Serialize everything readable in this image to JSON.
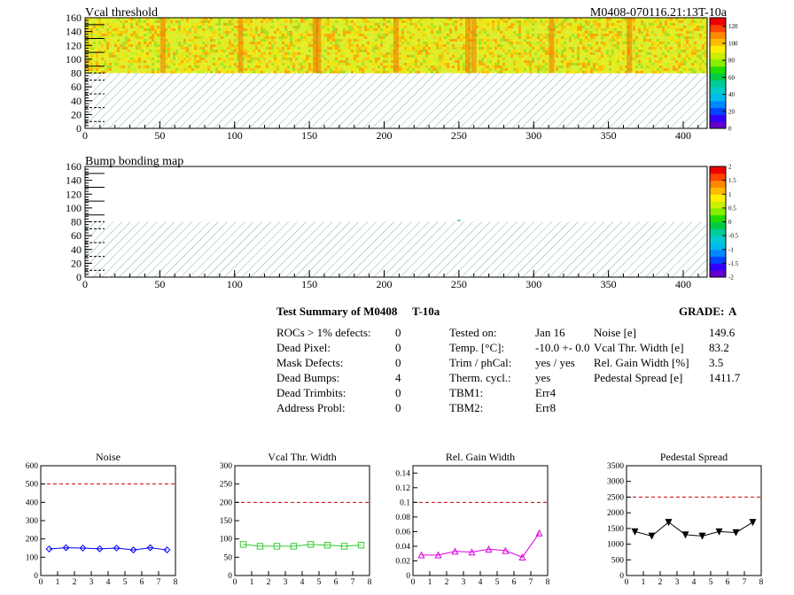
{
  "header": {
    "left_title": "Vcal threshold",
    "right_title": "M0408-070116.21:13T-10a"
  },
  "heatmap1": {
    "title": "Vcal threshold",
    "color_scale_ticks": [
      "0",
      "20",
      "40",
      "60",
      "80",
      "100",
      "120"
    ]
  },
  "heatmap2": {
    "title": "Bump bonding map",
    "color_scale_ticks": [
      "-2",
      "-1.5",
      "-1",
      "-0.5",
      "0",
      "0.5",
      "1",
      "1.5",
      "2"
    ]
  },
  "summary": {
    "title": "Test Summary of M0408",
    "temp_label": "T-10a",
    "grade_label": "GRADE:",
    "grade_value": "A",
    "left": [
      {
        "label": "ROCs > 1% defects:",
        "value": "0"
      },
      {
        "label": "Dead Pixel:",
        "value": "0"
      },
      {
        "label": "Mask Defects:",
        "value": "0"
      },
      {
        "label": "Dead Bumps:",
        "value": "4"
      },
      {
        "label": "Dead Trimbits:",
        "value": "0"
      },
      {
        "label": "Address Probl:",
        "value": "0"
      }
    ],
    "middle": [
      {
        "label": "Tested on:",
        "value": "Jan 16"
      },
      {
        "label": "Temp. [°C]:",
        "value": "-10.0 +- 0.0"
      },
      {
        "label": "Trim / phCal:",
        "value": "yes / yes"
      },
      {
        "label": "Therm. cycl.:",
        "value": "yes"
      },
      {
        "label": "TBM1:",
        "value": "Err4"
      },
      {
        "label": "TBM2:",
        "value": "Err8"
      }
    ],
    "right": [
      {
        "label": "Noise [e]",
        "value": "149.6"
      },
      {
        "label": "Vcal Thr. Width [e]",
        "value": "83.2"
      },
      {
        "label": "Rel. Gain Width [%]",
        "value": "3.5"
      },
      {
        "label": "Pedestal Spread [e]",
        "value": "1411.7"
      }
    ]
  },
  "chart_data": [
    {
      "type": "heatmap",
      "title": "Vcal threshold",
      "x_ticks": [
        0,
        50,
        100,
        150,
        200,
        250,
        300,
        350,
        400
      ],
      "y_ticks": [
        0,
        20,
        40,
        60,
        80,
        100,
        120,
        140,
        160
      ],
      "xlim": [
        0,
        416
      ],
      "ylim": [
        0,
        160
      ],
      "z_range": [
        0,
        130
      ],
      "filled_rows": [
        80,
        160
      ],
      "hatched_rows": [
        0,
        80
      ],
      "dark_columns": [
        52,
        104,
        154,
        156,
        208,
        256,
        260,
        312,
        364
      ]
    },
    {
      "type": "heatmap",
      "title": "Bump bonding map",
      "x_ticks": [
        0,
        50,
        100,
        150,
        200,
        250,
        300,
        350,
        400
      ],
      "y_ticks": [
        0,
        20,
        40,
        60,
        80,
        100,
        120,
        140,
        160
      ],
      "xlim": [
        0,
        416
      ],
      "ylim": [
        0,
        160
      ],
      "z_range": [
        -2,
        2
      ],
      "hatched_rows": [
        0,
        80
      ]
    },
    {
      "type": "line",
      "title": "Noise",
      "x": [
        0.5,
        1.5,
        2.5,
        3.5,
        4.5,
        5.5,
        6.5,
        7.5
      ],
      "values": [
        145,
        152,
        150,
        146,
        150,
        140,
        152,
        140
      ],
      "xlim": [
        0,
        8
      ],
      "ylim": [
        0,
        600
      ],
      "y_ticks": [
        0,
        100,
        200,
        300,
        400,
        500,
        600
      ],
      "limit": 500,
      "color": "#0000ff",
      "marker": "diamond"
    },
    {
      "type": "line",
      "title": "Vcal Thr. Width",
      "x": [
        0.5,
        1.5,
        2.5,
        3.5,
        4.5,
        5.5,
        6.5,
        7.5
      ],
      "values": [
        85,
        80,
        80,
        80,
        85,
        83,
        80,
        83
      ],
      "xlim": [
        0,
        8
      ],
      "ylim": [
        0,
        300
      ],
      "y_ticks": [
        0,
        50,
        100,
        150,
        200,
        250,
        300
      ],
      "limit": 200,
      "color": "#33cc33",
      "marker": "square"
    },
    {
      "type": "line",
      "title": "Rel. Gain Width",
      "x": [
        0.5,
        1.5,
        2.5,
        3.5,
        4.5,
        5.5,
        6.5,
        7.5
      ],
      "values": [
        0.028,
        0.028,
        0.033,
        0.032,
        0.036,
        0.034,
        0.025,
        0.058
      ],
      "xlim": [
        0,
        8
      ],
      "ylim": [
        0,
        0.15
      ],
      "y_ticks": [
        0,
        0.02,
        0.04,
        0.06,
        0.08,
        0.1,
        0.12,
        0.14
      ],
      "limit": 0.1,
      "color": "#dd00dd",
      "marker": "triangle-up"
    },
    {
      "type": "line",
      "title": "Pedestal Spread",
      "x": [
        0.5,
        1.5,
        2.5,
        3.5,
        4.5,
        5.5,
        6.5,
        7.5
      ],
      "values": [
        1400,
        1260,
        1700,
        1300,
        1260,
        1400,
        1370,
        1700
      ],
      "xlim": [
        0,
        8
      ],
      "ylim": [
        0,
        3500
      ],
      "y_ticks": [
        0,
        500,
        1000,
        1500,
        2000,
        2500,
        3000,
        3500
      ],
      "limit": 2500,
      "color": "#000000",
      "marker": "triangle-down"
    }
  ]
}
